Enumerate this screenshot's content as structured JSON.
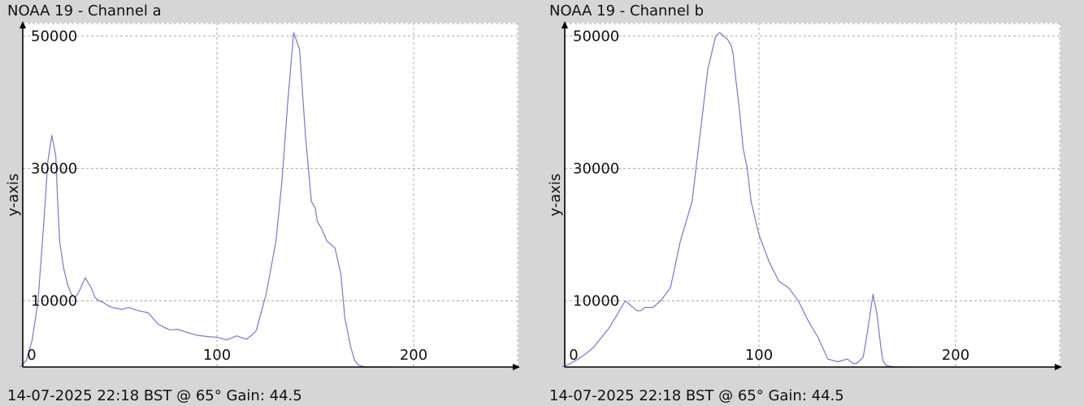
{
  "chart_data": [
    {
      "type": "line",
      "title": "NOAA 19 - Channel a",
      "footer": "14-07-2025 22:18 BST @ 65° Gain: 44.5",
      "xlabel": "",
      "ylabel": "y-axis",
      "xlim": [
        0,
        255
      ],
      "ylim": [
        0,
        52000
      ],
      "x_ticks": [
        {
          "value": 0,
          "label": "0"
        },
        {
          "value": 100,
          "label": "100"
        },
        {
          "value": 200,
          "label": "200"
        }
      ],
      "y_ticks": [
        {
          "value": 10000,
          "label": "10000"
        },
        {
          "value": 30000,
          "label": "30000"
        },
        {
          "value": 50000,
          "label": "50000"
        }
      ],
      "grid": true,
      "line_color": "#7777cc",
      "series": [
        {
          "x": [
            0,
            3,
            6,
            9,
            12,
            14,
            16,
            18,
            19,
            20,
            22,
            24,
            26,
            28,
            30,
            33,
            36,
            38,
            40,
            42,
            45,
            48,
            52,
            55,
            60,
            65,
            70,
            73,
            76,
            80,
            85,
            90,
            95,
            100,
            105,
            110,
            115,
            118,
            120,
            125,
            130,
            133,
            136,
            139,
            142,
            145,
            148,
            150,
            151,
            153,
            156,
            160,
            163,
            165,
            168,
            170,
            172,
            174,
            176,
            178,
            180,
            183,
            186,
            188,
            190
          ],
          "y": [
            0,
            1000,
            4000,
            10000,
            22000,
            31000,
            35000,
            32000,
            25000,
            19000,
            15000,
            12500,
            11000,
            10500,
            11500,
            13500,
            12000,
            10500,
            10000,
            9800,
            9200,
            8900,
            8700,
            9000,
            8500,
            8200,
            6500,
            6000,
            5600,
            5700,
            5200,
            4800,
            4600,
            4500,
            4100,
            4700,
            4200,
            4900,
            5500,
            11000,
            19000,
            28000,
            40000,
            50500,
            48000,
            35000,
            25000,
            24000,
            22000,
            21000,
            19000,
            18000,
            14000,
            7500,
            3000,
            1000,
            300,
            100,
            0,
            0,
            0,
            0,
            0,
            0,
            0
          ]
        }
      ]
    },
    {
      "type": "line",
      "title": "NOAA 19 - Channel b",
      "footer": "14-07-2025 22:18 BST @ 65° Gain: 44.5",
      "xlabel": "",
      "ylabel": "y-axis",
      "xlim": [
        0,
        255
      ],
      "ylim": [
        0,
        52000
      ],
      "x_ticks": [
        {
          "value": 0,
          "label": "0"
        },
        {
          "value": 100,
          "label": "100"
        },
        {
          "value": 200,
          "label": "200"
        }
      ],
      "y_ticks": [
        {
          "value": 10000,
          "label": "10000"
        },
        {
          "value": 30000,
          "label": "30000"
        },
        {
          "value": 50000,
          "label": "50000"
        }
      ],
      "grid": true,
      "line_color": "#7777cc",
      "series": [
        {
          "x": [
            0,
            4,
            8,
            12,
            16,
            20,
            24,
            28,
            32,
            36,
            38,
            40,
            42,
            44,
            46,
            50,
            55,
            60,
            63,
            66,
            70,
            74,
            78,
            80,
            82,
            84,
            85,
            86,
            87,
            88,
            90,
            92,
            94,
            96,
            100,
            105,
            110,
            115,
            120,
            125,
            130,
            135,
            140,
            145,
            148,
            150,
            153,
            155,
            158,
            160,
            162,
            163,
            164,
            165,
            167,
            170,
            172,
            174,
            176
          ],
          "y": [
            0,
            500,
            1200,
            2000,
            3000,
            4500,
            6000,
            8000,
            10000,
            9000,
            8500,
            8500,
            9000,
            9000,
            9000,
            10000,
            12000,
            19000,
            22000,
            25000,
            35000,
            45000,
            50000,
            50500,
            50000,
            49500,
            49000,
            48500,
            47000,
            44000,
            39000,
            33000,
            30000,
            25000,
            20000,
            16000,
            13000,
            12000,
            10000,
            7000,
            4500,
            1200,
            800,
            1200,
            500,
            600,
            1500,
            5000,
            11000,
            8000,
            3000,
            1000,
            500,
            200,
            100,
            0,
            0,
            0,
            0
          ]
        }
      ]
    }
  ]
}
